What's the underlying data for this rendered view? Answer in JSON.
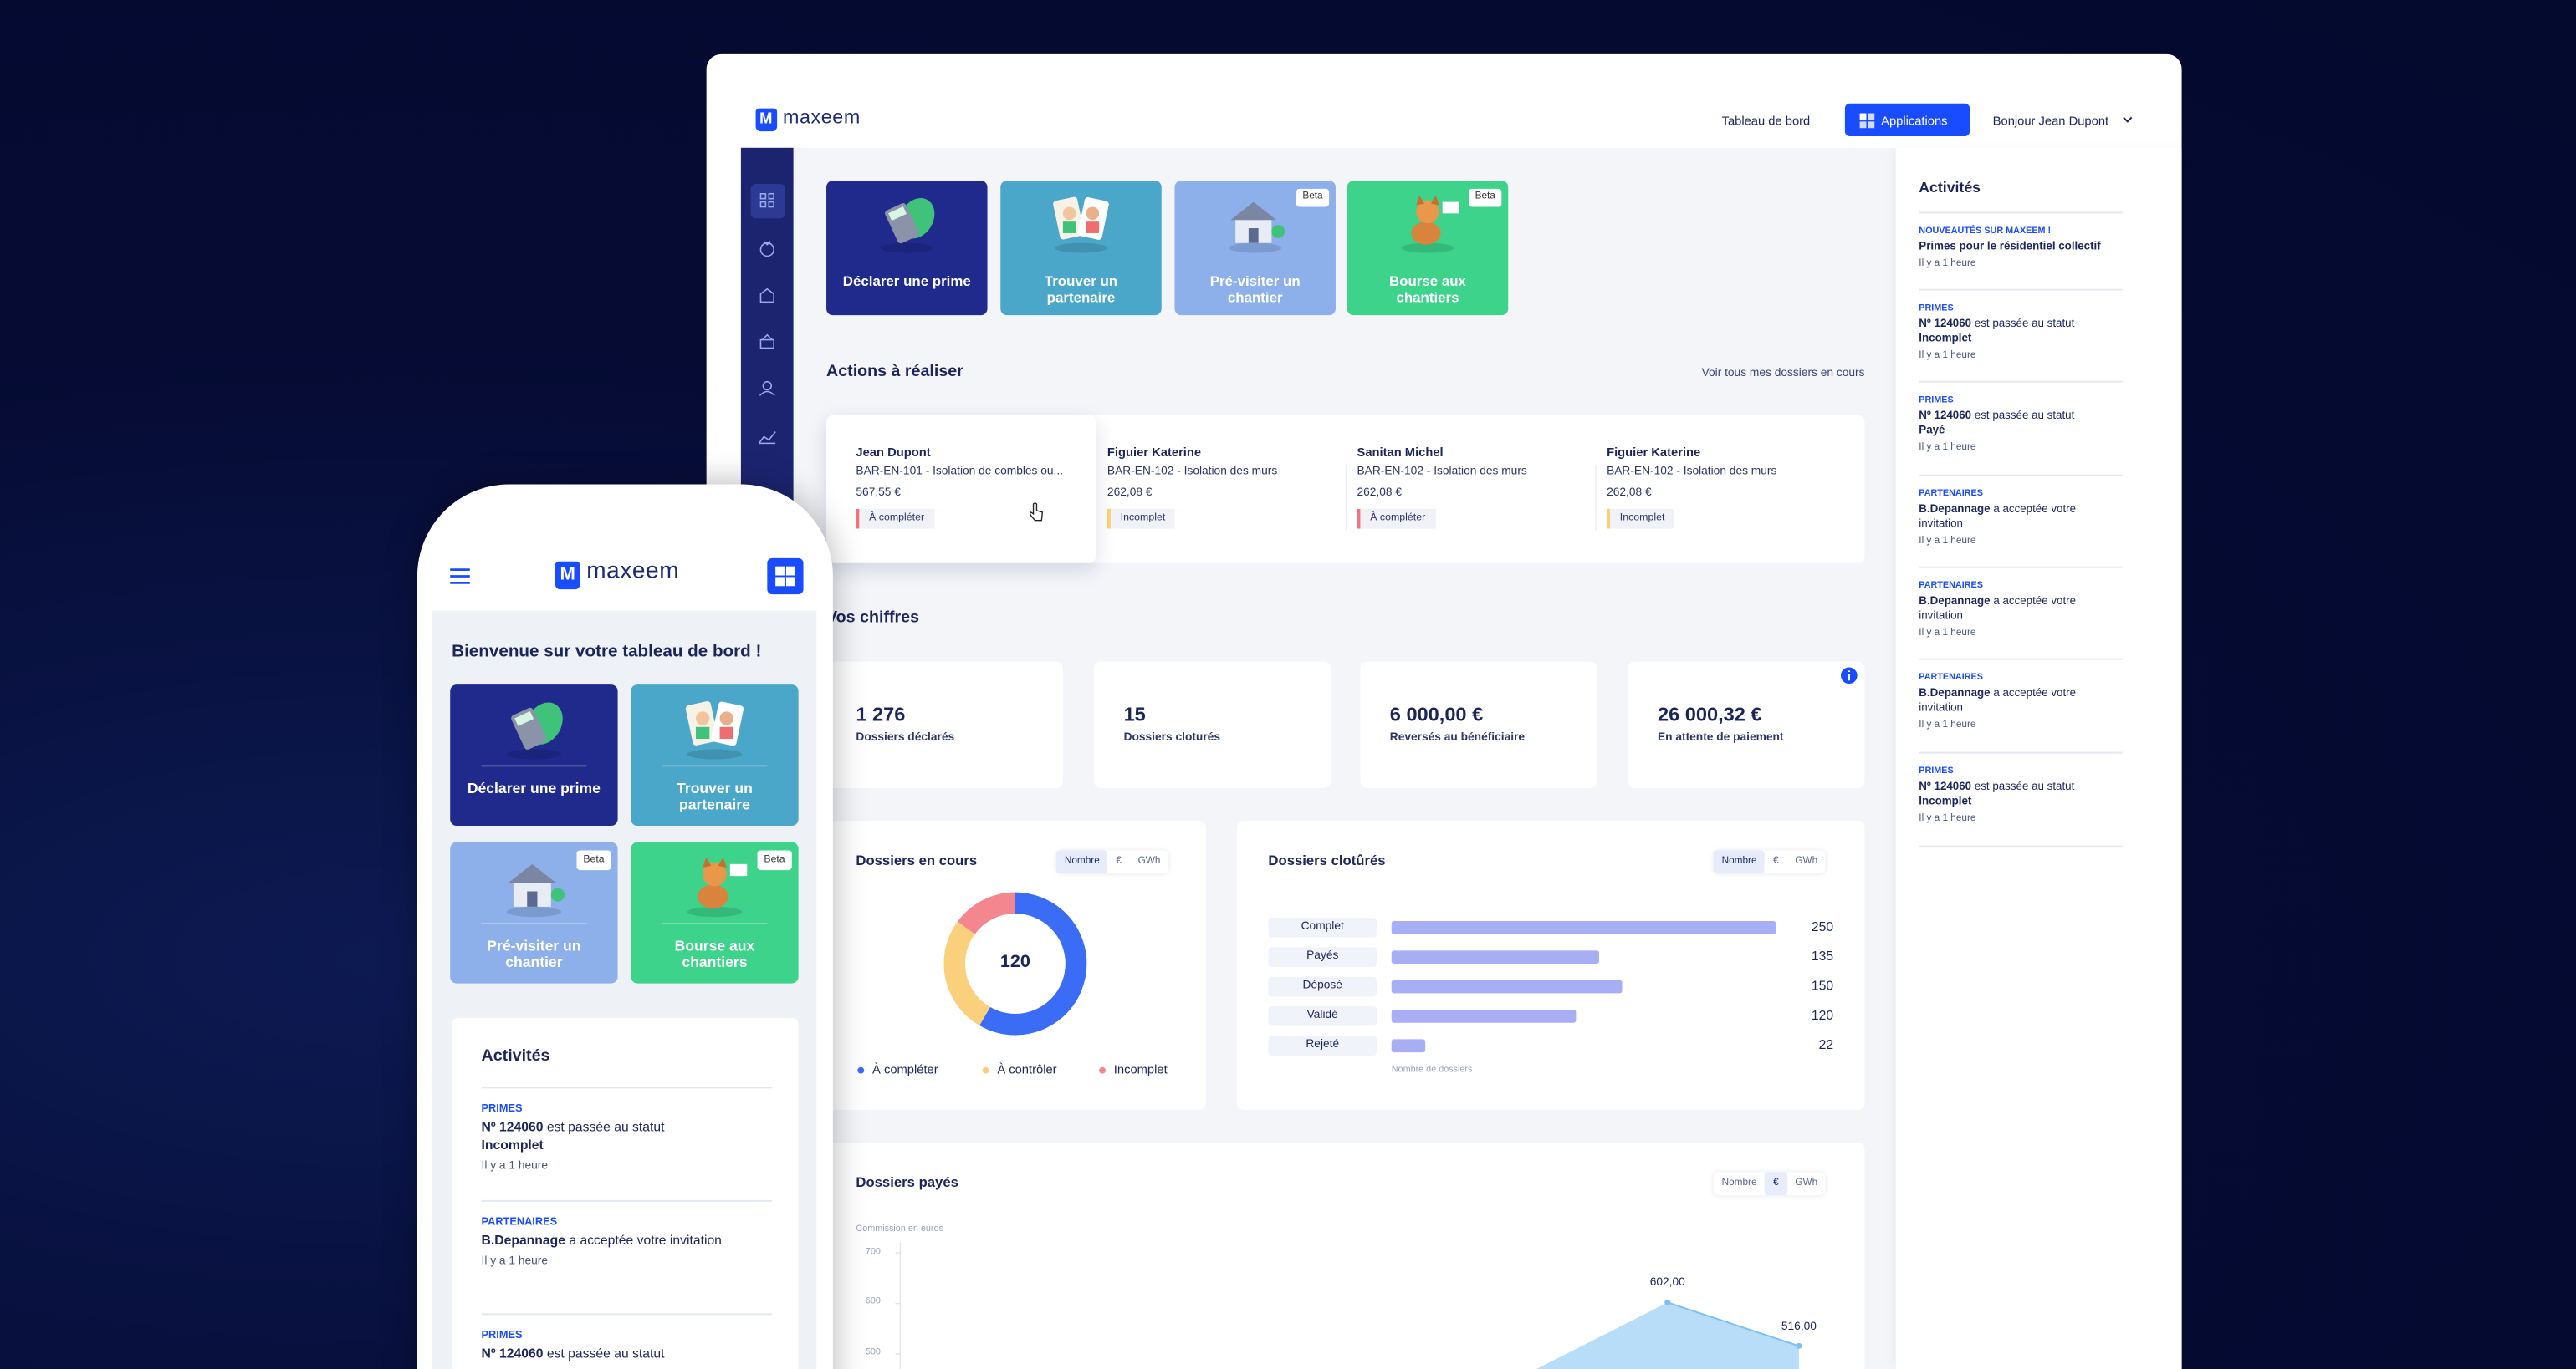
{
  "desktop": {
    "logo": {
      "mark": "M",
      "name": "maxeem"
    },
    "nav": {
      "dashboard": "Tableau de bord",
      "applications": "Applications",
      "greeting": "Bonjour Jean Dupont"
    },
    "tiles": [
      {
        "label": "Déclarer une prime",
        "color": "#1f2a8c"
      },
      {
        "label": "Trouver un partenaire",
        "color": "#4aa7c9"
      },
      {
        "label": "Pré-visiter un chantier",
        "color": "#8db0eb",
        "badge": "Beta"
      },
      {
        "label": "Bourse aux chantiers",
        "color": "#3dd38b",
        "badge": "Beta"
      }
    ],
    "actions": {
      "title": "Actions à réaliser",
      "link": "Voir tous mes dossiers en cours",
      "items": [
        {
          "name": "Jean Dupont",
          "ref": "BAR-EN-101 - Isolation de combles ou...",
          "amount": "567,55 €",
          "status": "À compléter",
          "color": "#f2737f"
        },
        {
          "name": "Figuier Katerine",
          "ref": "BAR-EN-102 - Isolation des murs",
          "amount": "262,08 €",
          "status": "Incomplet",
          "color": "#f9cf72"
        },
        {
          "name": "Sanitan Michel",
          "ref": "BAR-EN-102 - Isolation des murs",
          "amount": "262,08 €",
          "status": "À compléter",
          "color": "#f2737f"
        },
        {
          "name": "Figuier Katerine",
          "ref": "BAR-EN-102 - Isolation des murs",
          "amount": "262,08 €",
          "status": "Incomplet",
          "color": "#f9cf72"
        }
      ]
    },
    "figures": {
      "title": "Vos chiffres",
      "stats": [
        {
          "value": "1 276",
          "label": "Dossiers déclarés"
        },
        {
          "value": "15",
          "label": "Dossiers cloturés"
        },
        {
          "value": "6 000,00 €",
          "label": "Reversés au bénéficiaire"
        },
        {
          "value": "26 000,32 €",
          "label": "En attente de paiement"
        }
      ]
    },
    "open_files": {
      "type": "donut",
      "title": "Dossiers en cours",
      "toggles": [
        "Nombre",
        "€",
        "GWh"
      ],
      "total": 120,
      "segments": [
        {
          "name": "À compléter",
          "color": "#3b6cf6",
          "value": 70
        },
        {
          "name": "À contrôler",
          "color": "#fbd07c",
          "value": 32
        },
        {
          "name": "Incomplet",
          "color": "#f4868f",
          "value": 18
        }
      ]
    },
    "closed_files": {
      "type": "bar",
      "title": "Dossiers clotûrés",
      "toggles": [
        "Nombre",
        "€",
        "GWh"
      ],
      "categories": [
        "Complet",
        "Payés",
        "Déposé",
        "Validé",
        "Rejeté"
      ],
      "values": [
        250,
        135,
        150,
        120,
        22
      ],
      "xlim": [
        0,
        250
      ],
      "color": "#a7aef3",
      "axis_label": "Nombre de dossiers"
    },
    "paid_files": {
      "type": "area",
      "title": "Dossiers payés",
      "toggles": [
        "Nombre",
        "€",
        "GWh"
      ],
      "axis_label": "Commission en euros",
      "ylim": [
        470,
        720
      ],
      "yticks": [
        700,
        600,
        500
      ],
      "values": [
        602,
        516
      ],
      "value_labels": [
        "602,00",
        "516,00"
      ],
      "color": "#9fd2f6"
    },
    "activity": {
      "title": "Activités",
      "items": [
        {
          "category": "NOUVEAUTÉS SUR MAXEEM !",
          "subject": "Primes pour le résidentiel collectif",
          "time": "Il y a 1 heure"
        },
        {
          "category": "PRIMES",
          "subject": "Nº 124060",
          "text": "est passée au statut",
          "status": "Incomplet",
          "time": "Il y a 1 heure"
        },
        {
          "category": "PRIMES",
          "subject": "Nº 124060",
          "text": "est passée au statut",
          "status": "Payé",
          "time": "Il y a 1 heure"
        },
        {
          "category": "PARTENAIRES",
          "subject": "B.Depannage",
          "text": "a acceptée votre invitation",
          "time": "Il y a 1 heure"
        },
        {
          "category": "PARTENAIRES",
          "subject": "B.Depannage",
          "text": "a acceptée votre invitation",
          "time": "Il y a 1 heure"
        },
        {
          "category": "PARTENAIRES",
          "subject": "B.Depannage",
          "text": "a acceptée votre invitation",
          "time": "Il y a 1 heure"
        },
        {
          "category": "PRIMES",
          "subject": "Nº 124060",
          "text": "est passée au statut",
          "status": "Incomplet",
          "time": "Il y a 1 heure"
        }
      ]
    }
  },
  "phone": {
    "logo": {
      "mark": "M",
      "name": "maxeem"
    },
    "welcome": "Bienvenue sur votre tableau de bord !",
    "tiles": [
      {
        "label": "Déclarer une prime",
        "color": "#1f2a8c"
      },
      {
        "label": "Trouver un partenaire",
        "color": "#4aa7c9"
      },
      {
        "label": "Pré-visiter un chantier",
        "color": "#8db0eb",
        "badge": "Beta"
      },
      {
        "label": "Bourse aux chantiers",
        "color": "#3dd38b",
        "badge": "Beta"
      }
    ],
    "activity": {
      "title": "Activités",
      "items": [
        {
          "category": "PRIMES",
          "subject": "Nº 124060",
          "text": "est passée au statut",
          "status": "Incomplet",
          "time": "Il y a 1 heure"
        },
        {
          "category": "PARTENAIRES",
          "subject": "B.Depannage",
          "text": "a acceptée votre invitation",
          "time": "Il y a 1 heure"
        },
        {
          "category": "PRIMES",
          "subject": "Nº 124060",
          "text": "est passée au statut"
        }
      ]
    }
  }
}
